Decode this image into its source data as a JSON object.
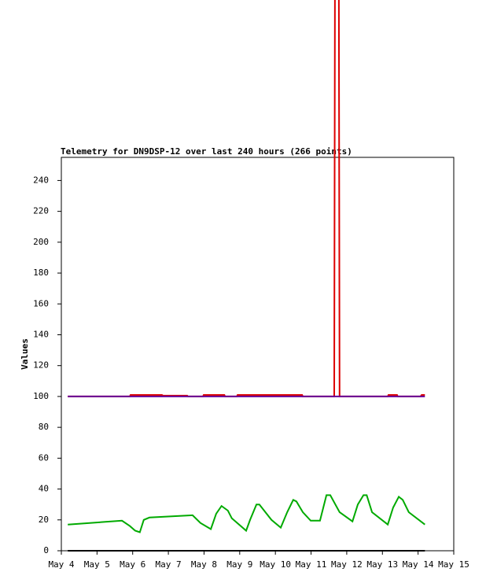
{
  "chart_data": {
    "type": "line",
    "title": "Telemetry for DN9DSP-12 over last 240 hours (266 points)",
    "y_label": "Values",
    "xlim": [
      4,
      15
    ],
    "xticks": [
      {
        "value": 4,
        "label": "May 4"
      },
      {
        "value": 5,
        "label": "May 5"
      },
      {
        "value": 6,
        "label": "May 6"
      },
      {
        "value": 7,
        "label": "May 7"
      },
      {
        "value": 8,
        "label": "May 8"
      },
      {
        "value": 9,
        "label": "May 9"
      },
      {
        "value": 10,
        "label": "May 10"
      },
      {
        "value": 11,
        "label": "May 11"
      },
      {
        "value": 12,
        "label": "May 12"
      },
      {
        "value": 13,
        "label": "May 13"
      },
      {
        "value": 14,
        "label": "May 14"
      },
      {
        "value": 15,
        "label": "May 15"
      }
    ],
    "ylim": [
      0,
      255
    ],
    "yticks": [
      0,
      20,
      40,
      60,
      80,
      100,
      120,
      140,
      160,
      180,
      200,
      220,
      240
    ],
    "series": [
      {
        "color": "#00aa00",
        "x": [
          4.18,
          5.7,
          5.92,
          6.07,
          6.2,
          6.31,
          6.47,
          7.68,
          7.9,
          8.19,
          8.34,
          8.49,
          8.67,
          8.78,
          9.18,
          9.29,
          9.47,
          9.55,
          9.89,
          10.15,
          10.33,
          10.5,
          10.59,
          10.77,
          10.99,
          11.25,
          11.43,
          11.54,
          11.8,
          12.16,
          12.31,
          12.47,
          12.56,
          12.71,
          13.15,
          13.3,
          13.46,
          13.57,
          13.74,
          14.19
        ],
        "values": [
          17,
          19.5,
          16,
          13,
          12,
          20,
          21.5,
          23,
          18,
          14,
          24,
          29,
          26,
          21,
          13,
          20,
          30,
          30,
          20,
          15,
          25,
          33,
          32,
          25,
          19.5,
          19.5,
          36,
          36,
          25,
          19,
          30,
          36,
          36,
          25,
          17,
          28,
          35,
          33,
          25,
          17
        ]
      },
      {
        "color": "#dd0000",
        "x": [
          4.18,
          5.92,
          5.94,
          6.82,
          6.85,
          7.53,
          7.55,
          7.97,
          7.99,
          8.57,
          8.59,
          8.92,
          8.94,
          10.75,
          10.77,
          11.65,
          11.67,
          11.78,
          11.8,
          13.15,
          13.17,
          13.41,
          13.43,
          14.07,
          14.1,
          14.19
        ],
        "values": [
          100,
          100,
          101,
          101,
          100.5,
          100.5,
          100,
          100,
          101,
          101,
          100,
          100,
          101,
          101,
          100,
          100,
          360,
          360,
          100,
          100,
          101,
          101,
          100,
          100,
          101,
          101
        ]
      },
      {
        "color": "#660099",
        "x": [
          4.18,
          14.19
        ],
        "values": [
          100,
          100
        ]
      },
      {
        "color": "#000000",
        "x": [
          4.18,
          14.19
        ],
        "values": [
          0,
          0
        ]
      }
    ]
  }
}
